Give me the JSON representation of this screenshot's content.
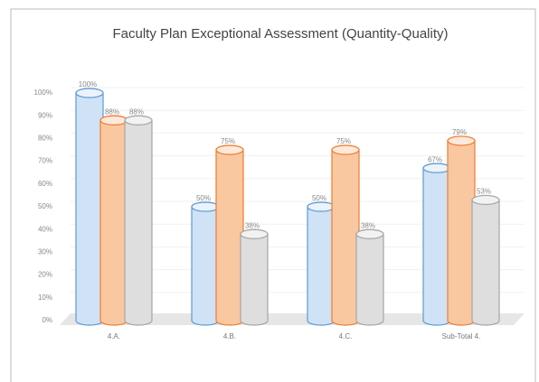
{
  "chart_data": {
    "type": "bar",
    "title": "Faculty Plan Exceptional Assessment (Quantity-Quality)",
    "categories": [
      "4.A.",
      "4.B.",
      "4.C.",
      "Sub-Total 4."
    ],
    "series": [
      {
        "color": "#5b9bd5",
        "values": [
          100,
          50,
          50,
          67
        ],
        "value_labels": [
          "100%",
          "50%",
          "50%",
          "67%"
        ]
      },
      {
        "color": "#ed7d31",
        "values": [
          88,
          75,
          75,
          79
        ],
        "value_labels": [
          "88%",
          "75%",
          "75%",
          "79%"
        ]
      },
      {
        "color": "#a5a5a5",
        "values": [
          88,
          38,
          38,
          53
        ],
        "value_labels": [
          "88%",
          "38%",
          "38%",
          "53%"
        ]
      }
    ],
    "ylim": [
      0,
      100
    ],
    "yticks": [
      {
        "value": 0,
        "label": "0%"
      },
      {
        "value": 10,
        "label": "10%"
      },
      {
        "value": 20,
        "label": "20%"
      },
      {
        "value": 30,
        "label": "30%"
      },
      {
        "value": 40,
        "label": "40%"
      },
      {
        "value": 50,
        "label": "50%"
      },
      {
        "value": 60,
        "label": "60%"
      },
      {
        "value": 70,
        "label": "70%"
      },
      {
        "value": 80,
        "label": "80%"
      },
      {
        "value": 90,
        "label": "90%"
      },
      {
        "value": 100,
        "label": "100%"
      }
    ],
    "grid": true
  }
}
